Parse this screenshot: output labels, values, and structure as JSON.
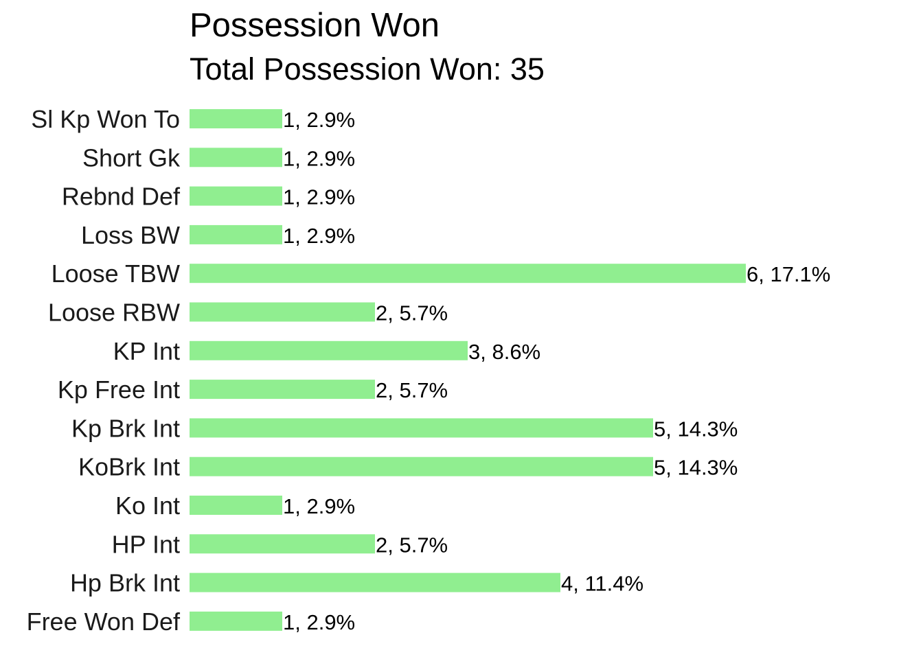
{
  "chart_data": {
    "type": "bar",
    "orientation": "horizontal",
    "title": "Possession Won",
    "subtitle": "Total Possession Won: 35",
    "xlabel": "",
    "ylabel": "",
    "xlim": [
      0,
      6
    ],
    "grid": false,
    "legend": "none",
    "bar_color": "#90EE90",
    "categories": [
      "Sl Kp Won To",
      "Short Gk",
      "Rebnd Def",
      "Loss BW",
      "Loose TBW",
      "Loose RBW",
      "KP Int",
      "Kp Free Int",
      "Kp Brk Int",
      "KoBrk Int",
      "Ko Int",
      "HP Int",
      "Hp Brk Int",
      "Free Won Def"
    ],
    "values": [
      1,
      1,
      1,
      1,
      6,
      2,
      3,
      2,
      5,
      5,
      1,
      2,
      4,
      1
    ],
    "data_labels": [
      "1, 2.9%",
      "1, 2.9%",
      "1, 2.9%",
      "1, 2.9%",
      "6, 17.1%",
      "2, 5.7%",
      "3, 8.6%",
      "2, 5.7%",
      "5, 14.3%",
      "5, 14.3%",
      "1, 2.9%",
      "2, 5.7%",
      "4, 11.4%",
      "1, 2.9%"
    ]
  }
}
